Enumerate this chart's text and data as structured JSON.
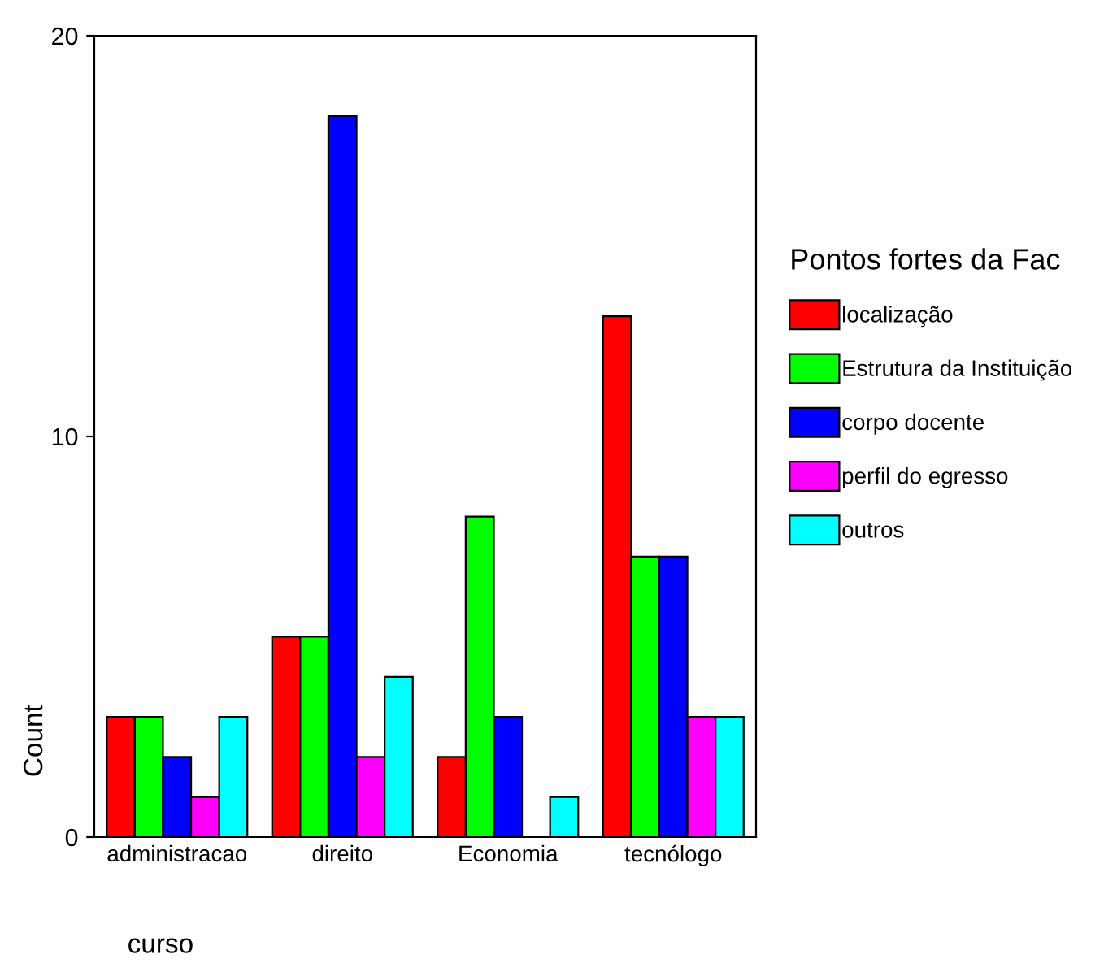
{
  "chart_data": {
    "type": "bar",
    "categories": [
      "administracao",
      "direito",
      "Economia",
      "tecnólogo"
    ],
    "series": [
      {
        "name": "localização",
        "color": "#ff0000",
        "values": [
          3,
          5,
          2,
          13
        ]
      },
      {
        "name": "Estrutura da Instituição",
        "color": "#00ff00",
        "values": [
          3,
          5,
          8,
          7
        ]
      },
      {
        "name": "corpo docente",
        "color": "#0000ff",
        "values": [
          2,
          18,
          3,
          7
        ]
      },
      {
        "name": "perfil do egresso",
        "color": "#ff00ff",
        "values": [
          1,
          2,
          null,
          3
        ]
      },
      {
        "name": "outros",
        "color": "#00ffff",
        "values": [
          3,
          4,
          1,
          3
        ]
      }
    ],
    "xlabel": "curso",
    "ylabel": "Count",
    "legend_title": "Pontos fortes da Fac",
    "ylim": [
      0,
      20
    ],
    "yticks": [
      0,
      10,
      20
    ],
    "grid": false,
    "legend": "right"
  }
}
